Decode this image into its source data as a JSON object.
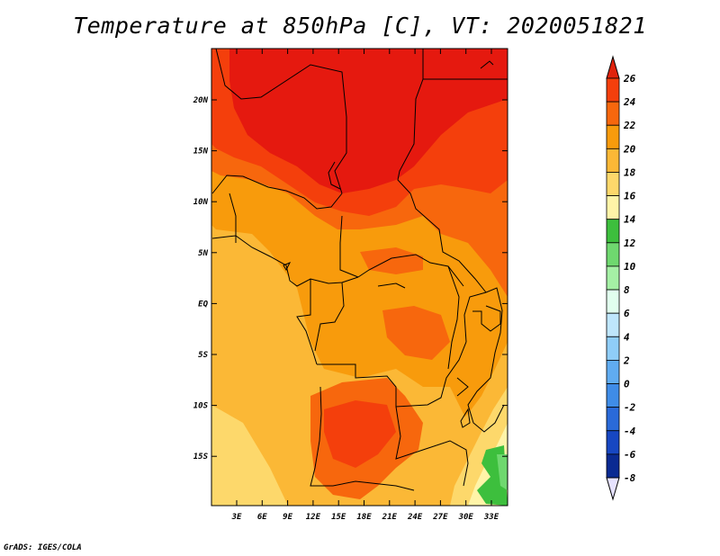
{
  "title": "Temperature at 850hPa [C], VT: 2020051821",
  "credit": "GrADS: IGES/COLA",
  "map": {
    "lon_ticks": [
      "3E",
      "6E",
      "9E",
      "12E",
      "15E",
      "18E",
      "21E",
      "24E",
      "27E",
      "30E",
      "33E"
    ],
    "lat_ticks": [
      "20N",
      "15N",
      "10N",
      "5N",
      "EQ",
      "5S",
      "10S",
      "15S"
    ]
  },
  "colorbar": {
    "labels": [
      "26",
      "24",
      "22",
      "20",
      "18",
      "16",
      "14",
      "12",
      "10",
      "8",
      "6",
      "4",
      "2",
      "0",
      "-2",
      "-4",
      "-6",
      "-8"
    ],
    "colors": [
      "#e5190f",
      "#f43f0c",
      "#f7670d",
      "#f89b0c",
      "#fbb836",
      "#fdd86b",
      "#fff4a8",
      "#3dbf3d",
      "#6fd86f",
      "#a5f0a5",
      "#e1ffee",
      "#bfe6fc",
      "#8fcdf8",
      "#60acf1",
      "#3f8ce7",
      "#2a6ad9",
      "#1747c2",
      "#0a2a92",
      "#050f5e"
    ],
    "top_arrow_color": "#e0230d",
    "bottom_arrow_color": "#e6e2ff"
  }
}
